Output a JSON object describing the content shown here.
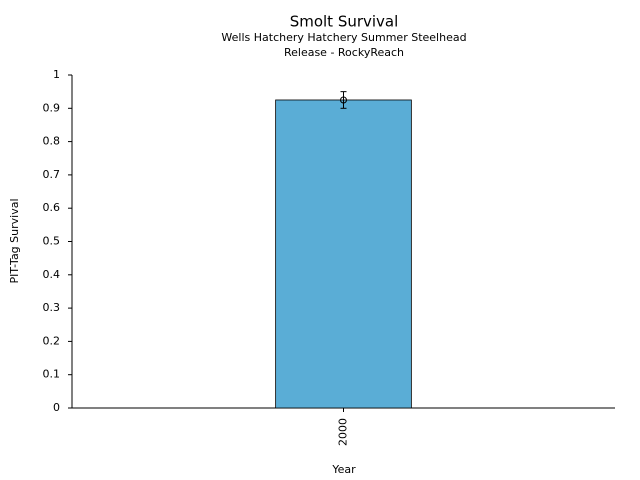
{
  "chart_data": {
    "type": "bar",
    "title": "Smolt Survival",
    "subtitle": [
      "Wells Hatchery Hatchery Summer Steelhead",
      "Release - RockyReach"
    ],
    "x_label": "Year",
    "y_label": "PIT-Tag Survival",
    "categories": [
      "2000"
    ],
    "values": [
      0.925
    ],
    "errors": [
      0.025
    ],
    "color": "#5aadd6",
    "ylim": [
      0,
      1
    ],
    "yticks": [
      0,
      0.1,
      0.2,
      0.3,
      0.4,
      0.5,
      0.6,
      0.7,
      0.8,
      0.9,
      1
    ]
  }
}
